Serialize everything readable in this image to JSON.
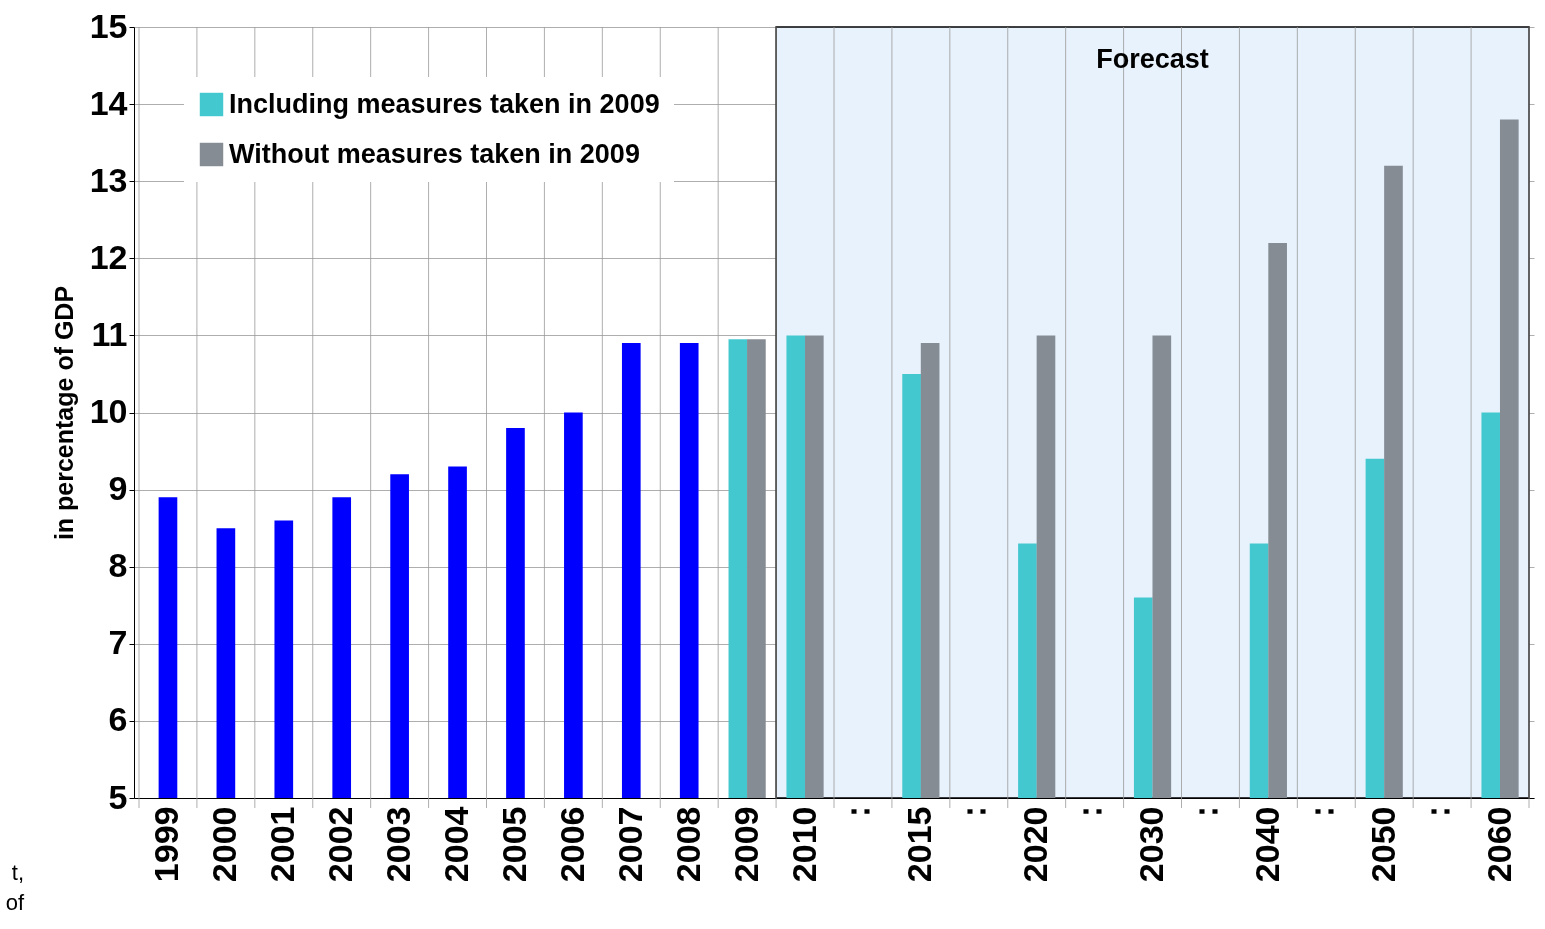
{
  "chart_data": {
    "type": "bar",
    "ylabel": "in percentage of GDP",
    "categories": [
      "1999",
      "2000",
      "2001",
      "2002",
      "2003",
      "2004",
      "2005",
      "2006",
      "2007",
      "2008",
      "2009",
      "2010",
      "∶",
      "2015",
      "∶",
      "2020",
      "∶",
      "2030",
      "∶",
      "2040",
      "∶",
      "2050",
      "∶",
      "2060"
    ],
    "series": [
      {
        "color": "#0000ff",
        "values": [
          8.9,
          8.5,
          8.6,
          8.9,
          9.2,
          9.3,
          9.8,
          10.0,
          10.9,
          10.9,
          null,
          null,
          null,
          null,
          null,
          null,
          null,
          null,
          null,
          null,
          null,
          null,
          null,
          null
        ]
      },
      {
        "name": "Including measures taken in 2009",
        "color": "#44c8d0",
        "values": [
          null,
          null,
          null,
          null,
          null,
          null,
          null,
          null,
          null,
          null,
          10.95,
          11.0,
          null,
          10.5,
          null,
          8.3,
          null,
          7.6,
          null,
          8.3,
          null,
          9.4,
          null,
          10.0
        ]
      },
      {
        "name": "Without measures taken in 2009",
        "color": "#858c94",
        "values": [
          null,
          null,
          null,
          null,
          null,
          null,
          null,
          null,
          null,
          null,
          10.95,
          11.0,
          null,
          10.9,
          null,
          11.0,
          null,
          11.0,
          null,
          12.2,
          null,
          13.2,
          null,
          13.8
        ]
      }
    ],
    "ylim": [
      5,
      15
    ],
    "yticks": [
      5,
      6,
      7,
      8,
      9,
      10,
      11,
      12,
      13,
      14,
      15
    ],
    "grid": true,
    "legend": "top left",
    "bands": [
      {
        "axis": "x",
        "from": "2010",
        "to": "2060",
        "label": "Forecast",
        "color": "#e8f2fc"
      }
    ],
    "annotations": [
      "t,",
      "of"
    ]
  }
}
